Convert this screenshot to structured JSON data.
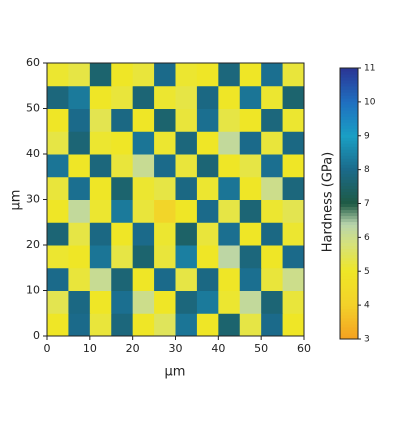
{
  "chart_data": {
    "type": "heatmap",
    "xlabel": "μm",
    "ylabel": "μm",
    "zlabel": "Hardness (GPa)",
    "x": [
      2.5,
      7.5,
      12.5,
      17.5,
      22.5,
      27.5,
      32.5,
      37.5,
      42.5,
      47.5,
      52.5,
      57.5
    ],
    "y": [
      2.5,
      7.5,
      12.5,
      17.5,
      22.5,
      27.5,
      32.5,
      37.5,
      42.5,
      47.5,
      52.5,
      57.5
    ],
    "z": [
      [
        5,
        8,
        5.2,
        7.8,
        5,
        5.5,
        8.2,
        5,
        7.6,
        5.3,
        8,
        5
      ],
      [
        5.4,
        7.9,
        5,
        8.1,
        6,
        5,
        7.8,
        8.3,
        5.1,
        6.2,
        7.7,
        5.2
      ],
      [
        8,
        5.2,
        6.1,
        7.7,
        5,
        8,
        5.3,
        7.9,
        5,
        8.1,
        5.2,
        6
      ],
      [
        5.1,
        5,
        8.2,
        5.3,
        7.6,
        5.2,
        8.4,
        5,
        6.3,
        7.8,
        5,
        8
      ],
      [
        7.7,
        5.3,
        7.9,
        5,
        8,
        5.1,
        7.5,
        5.2,
        8.1,
        5,
        7.9,
        5.1
      ],
      [
        5,
        6.2,
        5.1,
        8.3,
        5.2,
        4.2,
        5,
        8,
        5.3,
        7.7,
        5.1,
        5.4
      ],
      [
        5.2,
        8.1,
        5,
        7.6,
        5.1,
        5.3,
        7.9,
        5.1,
        8.2,
        5,
        6,
        7.8
      ],
      [
        8.2,
        5,
        7.8,
        5.2,
        6.1,
        8,
        5.2,
        7.7,
        5,
        5.3,
        8.1,
        5
      ],
      [
        5.3,
        7.7,
        5.1,
        5,
        8.2,
        5.1,
        7.8,
        5,
        6.2,
        8,
        5.2,
        7.9
      ],
      [
        5,
        8,
        5.4,
        7.9,
        5,
        7.6,
        5.2,
        8.1,
        5.3,
        5,
        7.8,
        5.1
      ],
      [
        7.8,
        8.3,
        5,
        5.2,
        7.7,
        5.1,
        5.3,
        7.9,
        5,
        8.2,
        5.1,
        7.6
      ],
      [
        5.1,
        5.3,
        7.6,
        5,
        5.2,
        8,
        5.1,
        5,
        7.8,
        5,
        8.1,
        5.2
      ]
    ],
    "xlim": [
      0,
      60
    ],
    "xticks": [
      0,
      10,
      20,
      30,
      40,
      50,
      60
    ],
    "ylim": [
      0,
      60
    ],
    "yticks": [
      0,
      10,
      20,
      30,
      40,
      50,
      60
    ],
    "zlim": [
      3,
      11
    ],
    "zticks": [
      3,
      4,
      5,
      6,
      7,
      8,
      9,
      10,
      11
    ],
    "colorscale": [
      {
        "value": 3,
        "color": "#f5a020"
      },
      {
        "value": 4,
        "color": "#f3d12a"
      },
      {
        "value": 5,
        "color": "#efe626"
      },
      {
        "value": 5.8,
        "color": "#d6e27a"
      },
      {
        "value": 6.4,
        "color": "#b8d4ac"
      },
      {
        "value": 7,
        "color": "#1e5a44"
      },
      {
        "value": 8,
        "color": "#1b6a8a"
      },
      {
        "value": 9,
        "color": "#1a9fc4"
      },
      {
        "value": 10,
        "color": "#1f6fc0"
      },
      {
        "value": 11,
        "color": "#2b3594"
      }
    ]
  }
}
